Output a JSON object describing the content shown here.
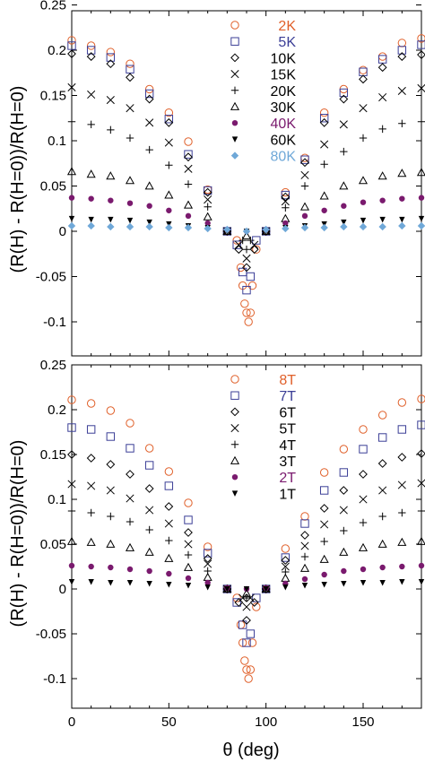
{
  "chart_data": [
    {
      "type": "scatter",
      "panel": "top",
      "xlabel": "",
      "ylabel": "(R(H) - R(H=0))/R(H=0)",
      "xlim": [
        0,
        180
      ],
      "ylim": [
        -0.12,
        0.25
      ],
      "x_ticks": [],
      "y_ticks": [
        -0.1,
        -0.05,
        0,
        0.05,
        0.1,
        0.15,
        0.2,
        0.25
      ],
      "y_tick_labels": [
        "-0.1",
        "-0.05",
        "0",
        "0.05",
        "0.1",
        "0.15",
        "0.2",
        "0.25"
      ],
      "grid": false,
      "legend_position": "top-center",
      "series": [
        {
          "name": "2K",
          "color": "#e0602a",
          "marker": "circle-open",
          "x": [
            0,
            10,
            20,
            30,
            40,
            50,
            60,
            70,
            80,
            85,
            87,
            88,
            89,
            90,
            91,
            92,
            93,
            95,
            100,
            110,
            120,
            130,
            140,
            150,
            160,
            170,
            180
          ],
          "y": [
            0.211,
            0.205,
            0.198,
            0.185,
            0.157,
            0.131,
            0.099,
            0.046,
            0.0,
            -0.01,
            -0.04,
            -0.06,
            -0.08,
            -0.09,
            -0.1,
            -0.09,
            -0.06,
            -0.02,
            0.0,
            0.043,
            0.081,
            0.131,
            0.157,
            0.178,
            0.193,
            0.208,
            0.213
          ]
        },
        {
          "name": "5K",
          "color": "#3b3e96",
          "marker": "square-open",
          "x": [
            0,
            10,
            20,
            30,
            40,
            50,
            60,
            70,
            80,
            85,
            88,
            90,
            92,
            95,
            100,
            110,
            120,
            130,
            140,
            150,
            160,
            170,
            180
          ],
          "y": [
            0.205,
            0.2,
            0.192,
            0.179,
            0.152,
            0.124,
            0.085,
            0.045,
            0.0,
            -0.015,
            -0.045,
            -0.065,
            -0.05,
            -0.01,
            0.0,
            0.04,
            0.079,
            0.125,
            0.153,
            0.176,
            0.19,
            0.2,
            0.206
          ]
        },
        {
          "name": "10K",
          "color": "#000000",
          "marker": "diamond-open",
          "x": [
            0,
            10,
            20,
            30,
            40,
            50,
            60,
            70,
            80,
            86,
            90,
            94,
            100,
            110,
            120,
            130,
            140,
            150,
            160,
            170,
            180
          ],
          "y": [
            0.196,
            0.193,
            0.185,
            0.17,
            0.146,
            0.12,
            0.082,
            0.043,
            0.0,
            -0.02,
            -0.04,
            -0.02,
            0.0,
            0.038,
            0.076,
            0.12,
            0.146,
            0.168,
            0.181,
            0.193,
            0.195
          ]
        },
        {
          "name": "15K",
          "color": "#000000",
          "marker": "x",
          "x": [
            0,
            10,
            20,
            30,
            40,
            50,
            60,
            70,
            80,
            86,
            90,
            94,
            100,
            110,
            120,
            130,
            140,
            150,
            160,
            170,
            180
          ],
          "y": [
            0.159,
            0.151,
            0.145,
            0.136,
            0.12,
            0.098,
            0.069,
            0.035,
            0.0,
            -0.015,
            -0.03,
            -0.015,
            0.0,
            0.033,
            0.062,
            0.096,
            0.118,
            0.136,
            0.148,
            0.155,
            0.158
          ]
        },
        {
          "name": "20K",
          "color": "#000000",
          "marker": "plus",
          "x": [
            0,
            10,
            20,
            30,
            40,
            50,
            60,
            70,
            80,
            88,
            90,
            92,
            100,
            110,
            120,
            130,
            140,
            150,
            160,
            170,
            180
          ],
          "y": [
            0.121,
            0.118,
            0.112,
            0.103,
            0.09,
            0.073,
            0.052,
            0.027,
            0.0,
            -0.01,
            -0.02,
            -0.01,
            0.0,
            0.026,
            0.05,
            0.074,
            0.088,
            0.103,
            0.113,
            0.119,
            0.121
          ]
        },
        {
          "name": "30K",
          "color": "#000000",
          "marker": "triangle-open",
          "x": [
            0,
            10,
            20,
            30,
            40,
            50,
            60,
            70,
            80,
            90,
            100,
            110,
            120,
            130,
            140,
            150,
            160,
            170,
            180
          ],
          "y": [
            0.066,
            0.063,
            0.061,
            0.056,
            0.05,
            0.04,
            0.029,
            0.016,
            0.0,
            -0.005,
            0.0,
            0.014,
            0.027,
            0.039,
            0.05,
            0.056,
            0.061,
            0.064,
            0.065
          ]
        },
        {
          "name": "40K",
          "color": "#7a1a6e",
          "marker": "circle-filled",
          "x": [
            0,
            10,
            20,
            30,
            40,
            50,
            60,
            70,
            80,
            90,
            100,
            110,
            120,
            130,
            140,
            150,
            160,
            170,
            180
          ],
          "y": [
            0.037,
            0.036,
            0.034,
            0.031,
            0.028,
            0.023,
            0.017,
            0.009,
            0.002,
            0.0,
            0.002,
            0.009,
            0.017,
            0.023,
            0.028,
            0.032,
            0.034,
            0.036,
            0.037
          ]
        },
        {
          "name": "60K",
          "color": "#000000",
          "marker": "triangle-down-filled",
          "x": [
            0,
            10,
            20,
            30,
            40,
            50,
            60,
            70,
            80,
            90,
            100,
            110,
            120,
            130,
            140,
            150,
            160,
            170,
            180
          ],
          "y": [
            0.014,
            0.013,
            0.013,
            0.012,
            0.01,
            0.008,
            0.006,
            0.004,
            0.001,
            0.0,
            0.001,
            0.004,
            0.006,
            0.008,
            0.01,
            0.012,
            0.013,
            0.013,
            0.014
          ]
        },
        {
          "name": "80K",
          "color": "#6fa8d8",
          "marker": "diamond-filled",
          "x": [
            0,
            10,
            20,
            30,
            40,
            50,
            60,
            70,
            80,
            90,
            100,
            110,
            120,
            130,
            140,
            150,
            160,
            170,
            180
          ],
          "y": [
            0.006,
            0.006,
            0.005,
            0.005,
            0.005,
            0.004,
            0.004,
            0.003,
            0.002,
            0.0,
            0.002,
            0.003,
            0.004,
            0.004,
            0.005,
            0.005,
            0.005,
            0.006,
            0.006
          ]
        }
      ]
    },
    {
      "type": "scatter",
      "panel": "bottom",
      "xlabel": "θ (deg)",
      "ylabel": "(R(H) - R(H=0))/R(H=0)",
      "xlim": [
        0,
        180
      ],
      "ylim": [
        -0.12,
        0.25
      ],
      "x_ticks": [
        0,
        50,
        100,
        150
      ],
      "x_tick_labels": [
        "0",
        "50",
        "100",
        "150"
      ],
      "y_ticks": [
        -0.1,
        -0.05,
        0,
        0.05,
        0.1,
        0.15,
        0.2,
        0.25
      ],
      "y_tick_labels": [
        "-0.1",
        "-0.05",
        "0",
        "0.05",
        "0.1",
        "0.15",
        "0.2",
        "0.25"
      ],
      "grid": false,
      "legend_position": "top-center",
      "series": [
        {
          "name": "8T",
          "color": "#e0602a",
          "marker": "circle-open",
          "x": [
            0,
            10,
            20,
            30,
            40,
            50,
            60,
            70,
            80,
            85,
            87,
            88,
            89,
            90,
            91,
            92,
            93,
            95,
            100,
            110,
            120,
            130,
            140,
            150,
            160,
            170,
            180
          ],
          "y": [
            0.211,
            0.207,
            0.199,
            0.185,
            0.157,
            0.131,
            0.096,
            0.047,
            0.0,
            -0.01,
            -0.04,
            -0.06,
            -0.08,
            -0.09,
            -0.1,
            -0.09,
            -0.06,
            -0.02,
            0.0,
            0.045,
            0.081,
            0.13,
            0.156,
            0.178,
            0.194,
            0.208,
            0.212
          ]
        },
        {
          "name": "7T",
          "color": "#3b3e96",
          "marker": "square-open",
          "x": [
            0,
            10,
            20,
            30,
            40,
            50,
            60,
            70,
            80,
            85,
            88,
            90,
            92,
            95,
            100,
            110,
            120,
            130,
            140,
            150,
            160,
            170,
            180
          ],
          "y": [
            0.18,
            0.178,
            0.17,
            0.157,
            0.138,
            0.115,
            0.077,
            0.04,
            0.0,
            -0.015,
            -0.04,
            -0.06,
            -0.05,
            -0.01,
            0.0,
            0.035,
            0.073,
            0.11,
            0.13,
            0.156,
            0.169,
            0.178,
            0.183
          ]
        },
        {
          "name": "6T",
          "color": "#000000",
          "marker": "diamond-open",
          "x": [
            0,
            10,
            20,
            30,
            40,
            50,
            60,
            70,
            80,
            86,
            90,
            94,
            100,
            110,
            120,
            130,
            140,
            150,
            160,
            170,
            180
          ],
          "y": [
            0.15,
            0.146,
            0.139,
            0.128,
            0.112,
            0.092,
            0.063,
            0.034,
            0.0,
            -0.015,
            -0.035,
            -0.015,
            0.0,
            0.032,
            0.06,
            0.09,
            0.11,
            0.128,
            0.14,
            0.147,
            0.151
          ]
        },
        {
          "name": "5T",
          "color": "#000000",
          "marker": "x",
          "x": [
            0,
            10,
            20,
            30,
            40,
            50,
            60,
            70,
            80,
            88,
            90,
            92,
            100,
            110,
            120,
            130,
            140,
            150,
            160,
            170,
            180
          ],
          "y": [
            0.117,
            0.115,
            0.11,
            0.101,
            0.088,
            0.073,
            0.05,
            0.028,
            0.0,
            -0.01,
            -0.02,
            -0.01,
            0.0,
            0.025,
            0.048,
            0.072,
            0.088,
            0.1,
            0.11,
            0.116,
            0.118
          ]
        },
        {
          "name": "4T",
          "color": "#000000",
          "marker": "plus",
          "x": [
            0,
            10,
            20,
            30,
            40,
            50,
            60,
            70,
            80,
            90,
            100,
            110,
            120,
            130,
            140,
            150,
            160,
            170,
            180
          ],
          "y": [
            0.087,
            0.085,
            0.081,
            0.075,
            0.066,
            0.054,
            0.038,
            0.02,
            0.0,
            -0.01,
            0.0,
            0.019,
            0.036,
            0.053,
            0.065,
            0.074,
            0.081,
            0.085,
            0.087
          ]
        },
        {
          "name": "3T",
          "color": "#000000",
          "marker": "triangle-open",
          "x": [
            0,
            10,
            20,
            30,
            40,
            50,
            60,
            70,
            80,
            90,
            100,
            110,
            120,
            130,
            140,
            150,
            160,
            170,
            180
          ],
          "y": [
            0.053,
            0.052,
            0.05,
            0.046,
            0.041,
            0.034,
            0.024,
            0.013,
            0.0,
            -0.005,
            0.0,
            0.012,
            0.023,
            0.033,
            0.041,
            0.046,
            0.05,
            0.052,
            0.053
          ]
        },
        {
          "name": "2T",
          "color": "#7a1a6e",
          "marker": "circle-filled",
          "x": [
            0,
            10,
            20,
            30,
            40,
            50,
            60,
            70,
            80,
            90,
            100,
            110,
            120,
            130,
            140,
            150,
            160,
            170,
            180
          ],
          "y": [
            0.026,
            0.025,
            0.024,
            0.022,
            0.02,
            0.017,
            0.012,
            0.007,
            0.001,
            0.0,
            0.001,
            0.006,
            0.011,
            0.016,
            0.02,
            0.022,
            0.024,
            0.025,
            0.026
          ]
        },
        {
          "name": "1T",
          "color": "#000000",
          "marker": "triangle-down-filled",
          "x": [
            0,
            10,
            20,
            30,
            40,
            50,
            60,
            70,
            80,
            90,
            100,
            110,
            120,
            130,
            140,
            150,
            160,
            170,
            180
          ],
          "y": [
            0.008,
            0.008,
            0.007,
            0.007,
            0.006,
            0.005,
            0.004,
            0.002,
            0.0,
            0.0,
            0.0,
            0.002,
            0.004,
            0.005,
            0.006,
            0.007,
            0.007,
            0.008,
            0.008
          ]
        }
      ]
    }
  ]
}
